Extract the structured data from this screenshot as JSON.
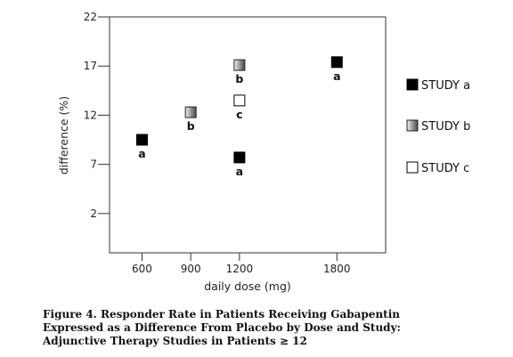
{
  "chart_data": {
    "type": "scatter",
    "title": "",
    "xlabel": "daily dose (mg)",
    "ylabel": "difference (%)",
    "xlim": [
      400,
      2100
    ],
    "ylim": [
      -2,
      22
    ],
    "xticks": [
      600,
      900,
      1200,
      1800
    ],
    "yticks": [
      2,
      7,
      12,
      17,
      22
    ],
    "grid": false,
    "legend_position": "right",
    "series": [
      {
        "name": "STUDY a",
        "style": "solid",
        "color": "#000000",
        "points": [
          {
            "x": 600,
            "y": 9.5,
            "label": "a"
          },
          {
            "x": 1200,
            "y": 7.7,
            "label": "a"
          },
          {
            "x": 1800,
            "y": 17.4,
            "label": "a"
          }
        ]
      },
      {
        "name": "STUDY b",
        "style": "gradient",
        "color": "#808080",
        "points": [
          {
            "x": 900,
            "y": 12.3,
            "label": "b"
          },
          {
            "x": 1200,
            "y": 17.1,
            "label": "b"
          }
        ]
      },
      {
        "name": "STUDY c",
        "style": "hollow",
        "color": "#000000",
        "points": [
          {
            "x": 1200,
            "y": 13.5,
            "label": "c"
          }
        ]
      }
    ]
  },
  "caption": "Figure 4. Responder Rate in Patients Receiving Gabapentin Expressed as a Difference From Placebo by Dose and Study: Adjunctive Therapy Studies in Patients ≥ 12"
}
